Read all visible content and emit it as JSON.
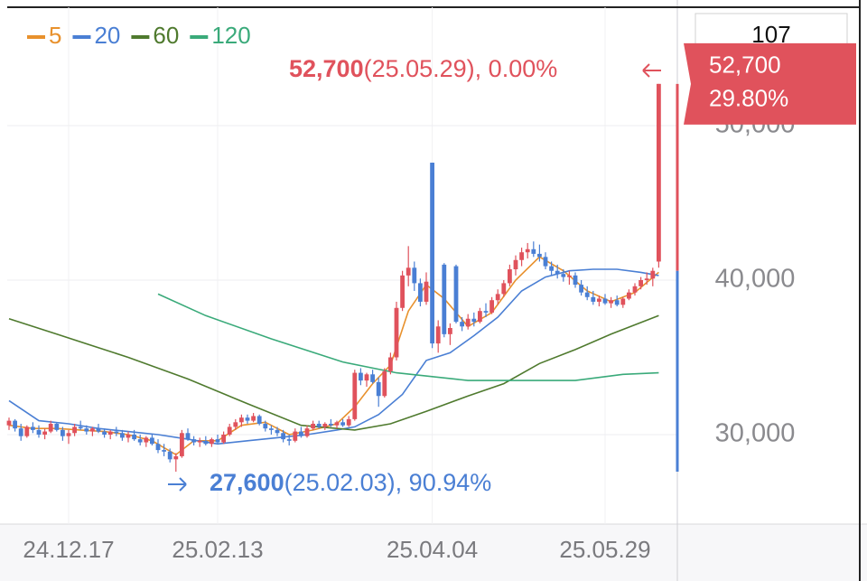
{
  "chart_data": {
    "type": "candlestick",
    "up_color": "#e0525c",
    "down_color": "#4a7fd4",
    "ylim": [
      24210,
      57660
    ],
    "yticks": [
      {
        "value": 30000,
        "label": "30,000"
      },
      {
        "value": 40000,
        "label": "40,000"
      },
      {
        "value": 50000,
        "label": "50,000"
      }
    ],
    "grid": true,
    "legend": "top-left",
    "top_label": "107",
    "last_price": {
      "value": 52700,
      "label": "52,700"
    },
    "last_change": {
      "value": 29.8,
      "label": "29.80%"
    },
    "high_note": {
      "value": 52700,
      "price": "52,700",
      "detail": "(25.05.29), 0.00%"
    },
    "low_note": {
      "value": 27600,
      "price": "27,600",
      "detail": "(25.02.03), 90.94%"
    },
    "categories": [
      null,
      null,
      null,
      null,
      null,
      null,
      null,
      null,
      null,
      null,
      "24.12.17",
      null,
      null,
      null,
      null,
      null,
      null,
      null,
      null,
      null,
      null,
      null,
      null,
      null,
      null,
      null,
      null,
      null,
      null,
      null,
      null,
      null,
      null,
      null,
      null,
      "25.02.13",
      null,
      null,
      null,
      null,
      null,
      null,
      null,
      null,
      null,
      null,
      null,
      null,
      null,
      null,
      null,
      null,
      null,
      null,
      null,
      null,
      null,
      null,
      null,
      null,
      null,
      null,
      null,
      null,
      null,
      null,
      null,
      null,
      null,
      null,
      null,
      "25.04.04",
      null,
      null,
      null,
      null,
      null,
      null,
      null,
      null,
      null,
      null,
      null,
      null,
      null,
      null,
      null,
      null,
      null,
      null,
      null,
      null,
      null,
      null,
      null,
      null,
      null,
      null,
      null,
      null,
      "25.05.29",
      null,
      null,
      null,
      null,
      null,
      null,
      null,
      null,
      null
    ],
    "ohlc": [
      [
        30600,
        31100,
        30300,
        30900
      ],
      [
        30900,
        31000,
        30200,
        30400
      ],
      [
        30400,
        30700,
        29600,
        29900
      ],
      [
        29900,
        30600,
        29800,
        30500
      ],
      [
        30500,
        30800,
        30100,
        30300
      ],
      [
        30300,
        30600,
        29800,
        30000
      ],
      [
        30000,
        30400,
        29700,
        30200
      ],
      [
        30200,
        30900,
        30100,
        30700
      ],
      [
        30700,
        30800,
        30200,
        30300
      ],
      [
        30300,
        30500,
        29600,
        29900
      ],
      [
        29900,
        30300,
        29400,
        30100
      ],
      [
        30100,
        30700,
        29900,
        30500
      ],
      [
        30500,
        30900,
        30300,
        30400
      ],
      [
        30400,
        30600,
        30000,
        30200
      ],
      [
        30200,
        30500,
        29900,
        30400
      ],
      [
        30400,
        30700,
        30100,
        30200
      ],
      [
        30200,
        30400,
        29800,
        30000
      ],
      [
        30000,
        30300,
        29700,
        30200
      ],
      [
        30200,
        30500,
        29900,
        30100
      ],
      [
        30100,
        30300,
        29600,
        29800
      ],
      [
        29800,
        30200,
        29500,
        30000
      ],
      [
        30000,
        30300,
        29600,
        29700
      ],
      [
        29700,
        30000,
        29300,
        29500
      ],
      [
        29500,
        29900,
        29200,
        29800
      ],
      [
        29800,
        30000,
        29300,
        29400
      ],
      [
        29400,
        29700,
        28800,
        29000
      ],
      [
        29000,
        29400,
        28600,
        28900
      ],
      [
        28900,
        29100,
        28200,
        28400
      ],
      [
        28400,
        28800,
        27600,
        28600
      ],
      [
        28600,
        30300,
        28500,
        30100
      ],
      [
        30100,
        30400,
        29600,
        29700
      ],
      [
        29700,
        29900,
        29300,
        29500
      ],
      [
        29500,
        29800,
        29200,
        29600
      ],
      [
        29600,
        29900,
        29300,
        29400
      ],
      [
        29400,
        29800,
        29200,
        29700
      ],
      [
        29700,
        30000,
        29400,
        29500
      ],
      [
        29500,
        30200,
        29400,
        30000
      ],
      [
        30000,
        30700,
        29900,
        30500
      ],
      [
        30500,
        31000,
        30300,
        30800
      ],
      [
        30800,
        31300,
        30500,
        31100
      ],
      [
        31100,
        31300,
        30700,
        30900
      ],
      [
        30900,
        31400,
        30800,
        31200
      ],
      [
        31200,
        31300,
        30600,
        30700
      ],
      [
        30700,
        30900,
        30200,
        30400
      ],
      [
        30400,
        30600,
        30000,
        30300
      ],
      [
        30300,
        30500,
        29900,
        30100
      ],
      [
        30100,
        30300,
        29500,
        29700
      ],
      [
        29700,
        30000,
        29300,
        29600
      ],
      [
        29600,
        30400,
        29500,
        30200
      ],
      [
        30200,
        30500,
        29800,
        29900
      ],
      [
        29900,
        30600,
        29800,
        30400
      ],
      [
        30400,
        30900,
        30300,
        30700
      ],
      [
        30700,
        30900,
        30400,
        30500
      ],
      [
        30500,
        30800,
        30300,
        30700
      ],
      [
        30700,
        31000,
        30500,
        30600
      ],
      [
        30600,
        30900,
        30400,
        30800
      ],
      [
        30800,
        31000,
        30500,
        30600
      ],
      [
        30600,
        31200,
        30500,
        31000
      ],
      [
        31000,
        34200,
        30900,
        34000
      ],
      [
        34000,
        34300,
        33200,
        33500
      ],
      [
        33500,
        34000,
        33100,
        33900
      ],
      [
        33900,
        34200,
        33300,
        33400
      ],
      [
        33400,
        33700,
        31800,
        32500
      ],
      [
        32500,
        34300,
        32400,
        34100
      ],
      [
        34100,
        35300,
        33900,
        35000
      ],
      [
        35000,
        38600,
        34800,
        38200
      ],
      [
        38200,
        40600,
        38000,
        40300
      ],
      [
        40300,
        42200,
        39600,
        40800
      ],
      [
        40800,
        41200,
        39300,
        39800
      ],
      [
        39800,
        40100,
        38300,
        38600
      ],
      [
        38600,
        40500,
        38400,
        39900
      ],
      [
        47600,
        47600,
        35600,
        35900
      ],
      [
        35900,
        37400,
        35300,
        37000
      ],
      [
        41000,
        41100,
        36300,
        36500
      ],
      [
        36500,
        37200,
        35800,
        36900
      ],
      [
        40900,
        41000,
        37200,
        37300
      ],
      [
        37300,
        37600,
        36700,
        37000
      ],
      [
        37000,
        37800,
        36800,
        37500
      ],
      [
        37500,
        37900,
        37000,
        37300
      ],
      [
        37300,
        38200,
        37200,
        38000
      ],
      [
        38000,
        38500,
        37600,
        37900
      ],
      [
        37900,
        38900,
        37800,
        38700
      ],
      [
        38700,
        39400,
        38400,
        39100
      ],
      [
        39100,
        40000,
        38900,
        39800
      ],
      [
        39800,
        41000,
        39600,
        40700
      ],
      [
        40700,
        41600,
        40300,
        41300
      ],
      [
        41300,
        42100,
        40900,
        41800
      ],
      [
        41800,
        42400,
        41400,
        42000
      ],
      [
        42000,
        42500,
        41500,
        41700
      ],
      [
        41700,
        42300,
        41200,
        41500
      ],
      [
        41500,
        41800,
        40700,
        40900
      ],
      [
        40900,
        41200,
        40300,
        40600
      ],
      [
        40600,
        41000,
        40100,
        40400
      ],
      [
        40400,
        40700,
        39900,
        40200
      ],
      [
        40200,
        40600,
        39700,
        40300
      ],
      [
        40300,
        40500,
        39500,
        39700
      ],
      [
        39700,
        40000,
        39000,
        39200
      ],
      [
        39200,
        39600,
        38700,
        38900
      ],
      [
        38900,
        39300,
        38400,
        38600
      ],
      [
        38600,
        39000,
        38300,
        38800
      ],
      [
        38800,
        39100,
        38400,
        38500
      ],
      [
        38500,
        38900,
        38200,
        38700
      ],
      [
        38700,
        39000,
        38300,
        38400
      ],
      [
        38400,
        38900,
        38200,
        38800
      ],
      [
        38800,
        39400,
        38700,
        39200
      ],
      [
        39200,
        39800,
        39000,
        39600
      ],
      [
        39600,
        40200,
        39400,
        40000
      ],
      [
        40000,
        40500,
        39700,
        40100
      ],
      [
        40100,
        40800,
        39600,
        40600
      ],
      [
        41200,
        52700,
        40800,
        52700
      ]
    ],
    "series": [
      {
        "name": "5",
        "color": "#e8912d",
        "x": [
          0,
          4,
          8,
          12,
          16,
          20,
          24,
          28,
          31,
          35,
          39,
          43,
          47,
          51,
          55,
          58,
          61,
          64,
          67,
          70,
          73,
          77,
          81,
          85,
          89,
          93,
          97,
          101,
          105,
          109
        ],
        "values": [
          30600,
          30400,
          30400,
          30300,
          30200,
          30000,
          29600,
          28700,
          29600,
          29600,
          30600,
          30800,
          30000,
          30300,
          30700,
          31800,
          33300,
          34500,
          38000,
          39700,
          38800,
          37000,
          37900,
          40000,
          41500,
          40600,
          39300,
          38600,
          39200,
          40500
        ]
      },
      {
        "name": "20",
        "color": "#4a7fd4",
        "x": [
          0,
          5,
          10,
          15,
          20,
          25,
          30,
          35,
          40,
          45,
          50,
          55,
          58,
          62,
          66,
          70,
          74,
          78,
          82,
          86,
          90,
          94,
          98,
          102,
          106,
          109
        ],
        "values": [
          32200,
          30900,
          30700,
          30400,
          30200,
          30000,
          29700,
          29400,
          29600,
          29800,
          30000,
          30300,
          30500,
          31300,
          32600,
          34800,
          35300,
          36400,
          37600,
          39300,
          40200,
          40600,
          40700,
          40700,
          40500,
          40300
        ]
      },
      {
        "name": "60",
        "color": "#4f7a2e",
        "x": [
          0,
          8,
          20,
          30,
          40,
          49,
          58,
          64,
          70,
          77,
          83,
          89,
          95,
          101,
          109
        ],
        "values": [
          37500,
          36500,
          35000,
          33600,
          32000,
          30600,
          30300,
          30700,
          31500,
          32500,
          33300,
          34600,
          35500,
          36500,
          37700
        ]
      },
      {
        "name": "120",
        "color": "#3aaa7a",
        "x": [
          25,
          33,
          44,
          56,
          65,
          77,
          95,
          103,
          109
        ],
        "values": [
          39100,
          37700,
          36200,
          34700,
          34000,
          33500,
          33500,
          33900,
          34000
        ]
      }
    ]
  }
}
